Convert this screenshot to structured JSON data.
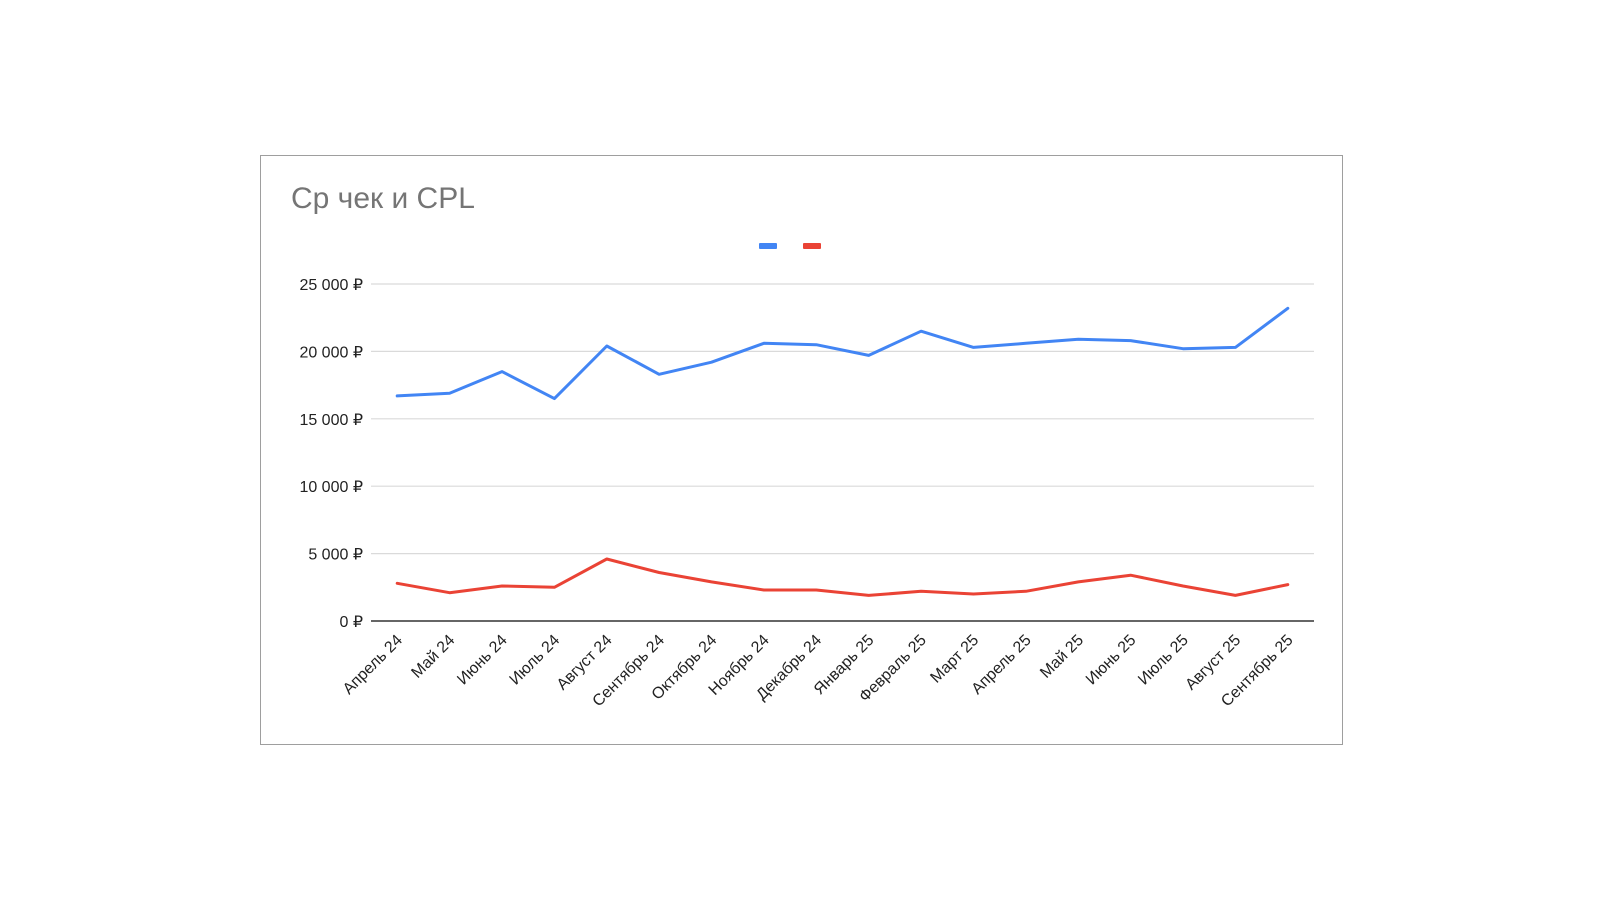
{
  "chart_data": {
    "type": "line",
    "title": "Ср чек и CPL",
    "xlabel": "",
    "ylabel": "",
    "categories": [
      "Апрель 24",
      "Май 24",
      "Июнь 24",
      "Июль 24",
      "Август 24",
      "Сентябрь 24",
      "Октябрь 24",
      "Ноябрь 24",
      "Декабрь 24",
      "Январь 25",
      "Февраль 25",
      "Март 25",
      "Апрель 25",
      "Май 25",
      "Июнь 25",
      "Июль 25",
      "Август 25",
      "Сентябрь 25"
    ],
    "series": [
      {
        "color": "#4285f4",
        "values": [
          16700,
          16900,
          18500,
          16500,
          20400,
          18300,
          19200,
          20600,
          20500,
          19700,
          21500,
          20300,
          20600,
          20900,
          20800,
          20200,
          20300,
          23200
        ]
      },
      {
        "color": "#ea4335",
        "values": [
          2800,
          2100,
          2600,
          2500,
          4600,
          3600,
          2900,
          2300,
          2300,
          1900,
          2200,
          2000,
          2200,
          2900,
          3400,
          2600,
          1900,
          2700
        ]
      }
    ],
    "ylim": [
      0,
      25000
    ],
    "yticks": [
      0,
      5000,
      10000,
      15000,
      20000,
      25000
    ],
    "ytick_labels": [
      "0 ₽",
      "5 000 ₽",
      "10 000 ₽",
      "15 000 ₽",
      "20 000 ₽",
      "25 000 ₽"
    ],
    "grid": true,
    "legend": "top-center"
  }
}
